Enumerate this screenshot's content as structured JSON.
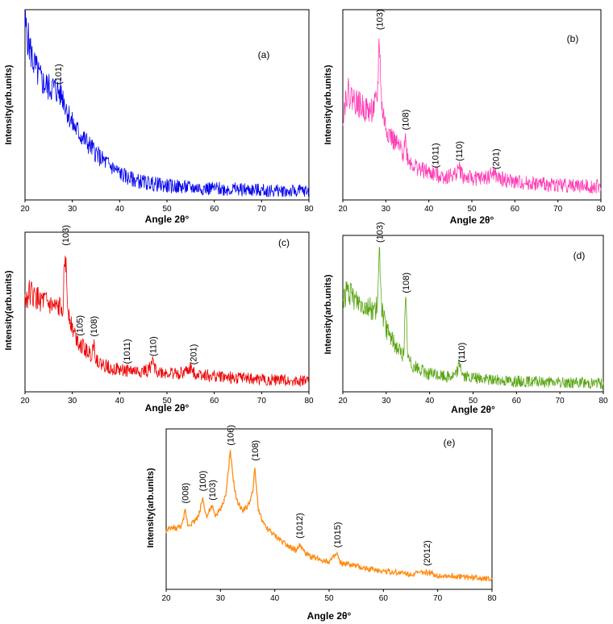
{
  "chart_data": [
    {
      "type": "line",
      "panel": "(a)",
      "color": "#0000ee",
      "xlabel": "Angle 2θ°",
      "ylabel": "Intensity(arb.units)",
      "xlim": [
        20,
        80
      ],
      "xticks": [
        "20",
        "30",
        "40",
        "50",
        "60",
        "70",
        "80"
      ],
      "series": [
        {
          "x": [
            20,
            21,
            22,
            23,
            24,
            25,
            26,
            27,
            28,
            29,
            30,
            32,
            34,
            36,
            38,
            40,
            42,
            45,
            50,
            55,
            60,
            65,
            70,
            75,
            80
          ],
          "y": [
            0.95,
            0.82,
            0.72,
            0.66,
            0.62,
            0.6,
            0.6,
            0.58,
            0.55,
            0.47,
            0.4,
            0.33,
            0.27,
            0.21,
            0.17,
            0.13,
            0.1,
            0.08,
            0.06,
            0.05,
            0.045,
            0.04,
            0.035,
            0.03,
            0.03
          ]
        }
      ],
      "peaks": [
        {
          "label": "(101)",
          "x": 27
        }
      ]
    },
    {
      "type": "line",
      "panel": "(b)",
      "color": "#ff3cb4",
      "xlabel": "Angle 2θ°",
      "ylabel": "Intensity(arb.units)",
      "xlim": [
        20,
        80
      ],
      "xticks": [
        "20",
        "30",
        "40",
        "50",
        "60",
        "70",
        "80"
      ],
      "series": [
        {
          "x": [
            20,
            21,
            22,
            24,
            26,
            27,
            28,
            28.5,
            29,
            30,
            32,
            34,
            34.5,
            35,
            36,
            38,
            40,
            42,
            44,
            46,
            47,
            48,
            50,
            52,
            54,
            55,
            56,
            58,
            60,
            65,
            70,
            75,
            80
          ],
          "y": [
            0.45,
            0.58,
            0.55,
            0.5,
            0.47,
            0.48,
            0.52,
            0.88,
            0.5,
            0.38,
            0.3,
            0.24,
            0.33,
            0.22,
            0.18,
            0.15,
            0.13,
            0.12,
            0.11,
            0.12,
            0.16,
            0.11,
            0.1,
            0.1,
            0.11,
            0.13,
            0.1,
            0.09,
            0.08,
            0.07,
            0.065,
            0.06,
            0.055
          ]
        }
      ],
      "peaks": [
        {
          "label": "(103)",
          "x": 28.5
        },
        {
          "label": "(108)",
          "x": 34.5
        },
        {
          "label": "(1011)",
          "x": 41.5
        },
        {
          "label": "(110)",
          "x": 47
        },
        {
          "label": "(201)",
          "x": 55.5
        }
      ]
    },
    {
      "type": "line",
      "panel": "(c)",
      "color": "#ee0000",
      "xlabel": "Angle 2θ°",
      "ylabel": "Intensity(arb.units)",
      "xlim": [
        20,
        80
      ],
      "xticks": [
        "20",
        "30",
        "40",
        "50",
        "60",
        "70",
        "80"
      ],
      "series": [
        {
          "x": [
            20,
            21,
            22,
            24,
            26,
            27,
            28,
            28.5,
            29,
            30,
            31,
            32,
            34,
            34.5,
            35,
            36,
            38,
            40,
            42,
            44,
            46,
            47,
            48,
            50,
            52,
            54,
            55,
            56,
            58,
            60,
            65,
            70,
            75,
            80
          ],
          "y": [
            0.58,
            0.64,
            0.6,
            0.57,
            0.53,
            0.52,
            0.56,
            0.9,
            0.55,
            0.4,
            0.33,
            0.28,
            0.22,
            0.3,
            0.2,
            0.16,
            0.14,
            0.12,
            0.12,
            0.11,
            0.12,
            0.17,
            0.11,
            0.1,
            0.1,
            0.11,
            0.13,
            0.1,
            0.09,
            0.08,
            0.07,
            0.06,
            0.055,
            0.05
          ]
        }
      ],
      "peaks": [
        {
          "label": "(103)",
          "x": 28.5
        },
        {
          "label": "(105)",
          "x": 31.5
        },
        {
          "label": "(108)",
          "x": 34.5
        },
        {
          "label": "(1011)",
          "x": 41.5
        },
        {
          "label": "(110)",
          "x": 47
        },
        {
          "label": "(201)",
          "x": 55.5
        }
      ]
    },
    {
      "type": "line",
      "panel": "(d)",
      "color": "#5aa514",
      "xlabel": "Angle 2θ°",
      "ylabel": "Intensity(arb.units)",
      "xlim": [
        20,
        80
      ],
      "xticks": [
        "20",
        "30",
        "40",
        "50",
        "60",
        "70",
        "80"
      ],
      "series": [
        {
          "x": [
            20,
            21,
            22,
            24,
            26,
            27,
            28,
            28.5,
            29,
            30,
            32,
            34,
            34.5,
            35,
            36,
            38,
            40,
            42,
            44,
            46,
            47,
            47.5,
            48,
            50,
            55,
            60,
            65,
            70,
            75,
            80
          ],
          "y": [
            0.6,
            0.66,
            0.62,
            0.58,
            0.55,
            0.53,
            0.55,
            0.94,
            0.52,
            0.4,
            0.3,
            0.22,
            0.6,
            0.2,
            0.16,
            0.12,
            0.1,
            0.09,
            0.08,
            0.09,
            0.18,
            0.1,
            0.08,
            0.07,
            0.06,
            0.05,
            0.045,
            0.04,
            0.04,
            0.035
          ]
        }
      ],
      "peaks": [
        {
          "label": "(103)",
          "x": 28.5
        },
        {
          "label": "(108)",
          "x": 34.5
        },
        {
          "label": "(110)",
          "x": 47.3
        }
      ]
    },
    {
      "type": "line",
      "panel": "(e)",
      "color": "#ff8c14",
      "xlabel": "Angle 2θ°",
      "ylabel": "Intensity(arb.units)",
      "xlim": [
        20,
        80
      ],
      "xticks": [
        "20",
        "30",
        "40",
        "50",
        "60",
        "70",
        "80"
      ],
      "series": [
        {
          "x": [
            20,
            21,
            22,
            23,
            23.5,
            24,
            25,
            26,
            26.7,
            27.5,
            28,
            28.5,
            29,
            30,
            31,
            31.8,
            32.5,
            33,
            34,
            35,
            36,
            36.3,
            37,
            38,
            40,
            42,
            44,
            44.5,
            46,
            48,
            50,
            51.5,
            52,
            54,
            56,
            60,
            65,
            68,
            70,
            75,
            80
          ],
          "y": [
            0.36,
            0.38,
            0.38,
            0.4,
            0.5,
            0.4,
            0.42,
            0.46,
            0.58,
            0.45,
            0.5,
            0.52,
            0.46,
            0.5,
            0.6,
            0.88,
            0.66,
            0.56,
            0.5,
            0.52,
            0.62,
            0.78,
            0.5,
            0.4,
            0.33,
            0.28,
            0.23,
            0.27,
            0.2,
            0.18,
            0.16,
            0.21,
            0.15,
            0.14,
            0.12,
            0.1,
            0.08,
            0.09,
            0.07,
            0.06,
            0.05
          ]
        }
      ],
      "peaks": [
        {
          "label": "(008)",
          "x": 23.5
        },
        {
          "label": "(100)",
          "x": 26.7
        },
        {
          "label": "(103)",
          "x": 28.5
        },
        {
          "label": "(106)",
          "x": 31.8
        },
        {
          "label": "(108)",
          "x": 36.3
        },
        {
          "label": "(1012)",
          "x": 44.5
        },
        {
          "label": "(1015)",
          "x": 51.5
        },
        {
          "label": "(2012)",
          "x": 68
        }
      ]
    }
  ]
}
